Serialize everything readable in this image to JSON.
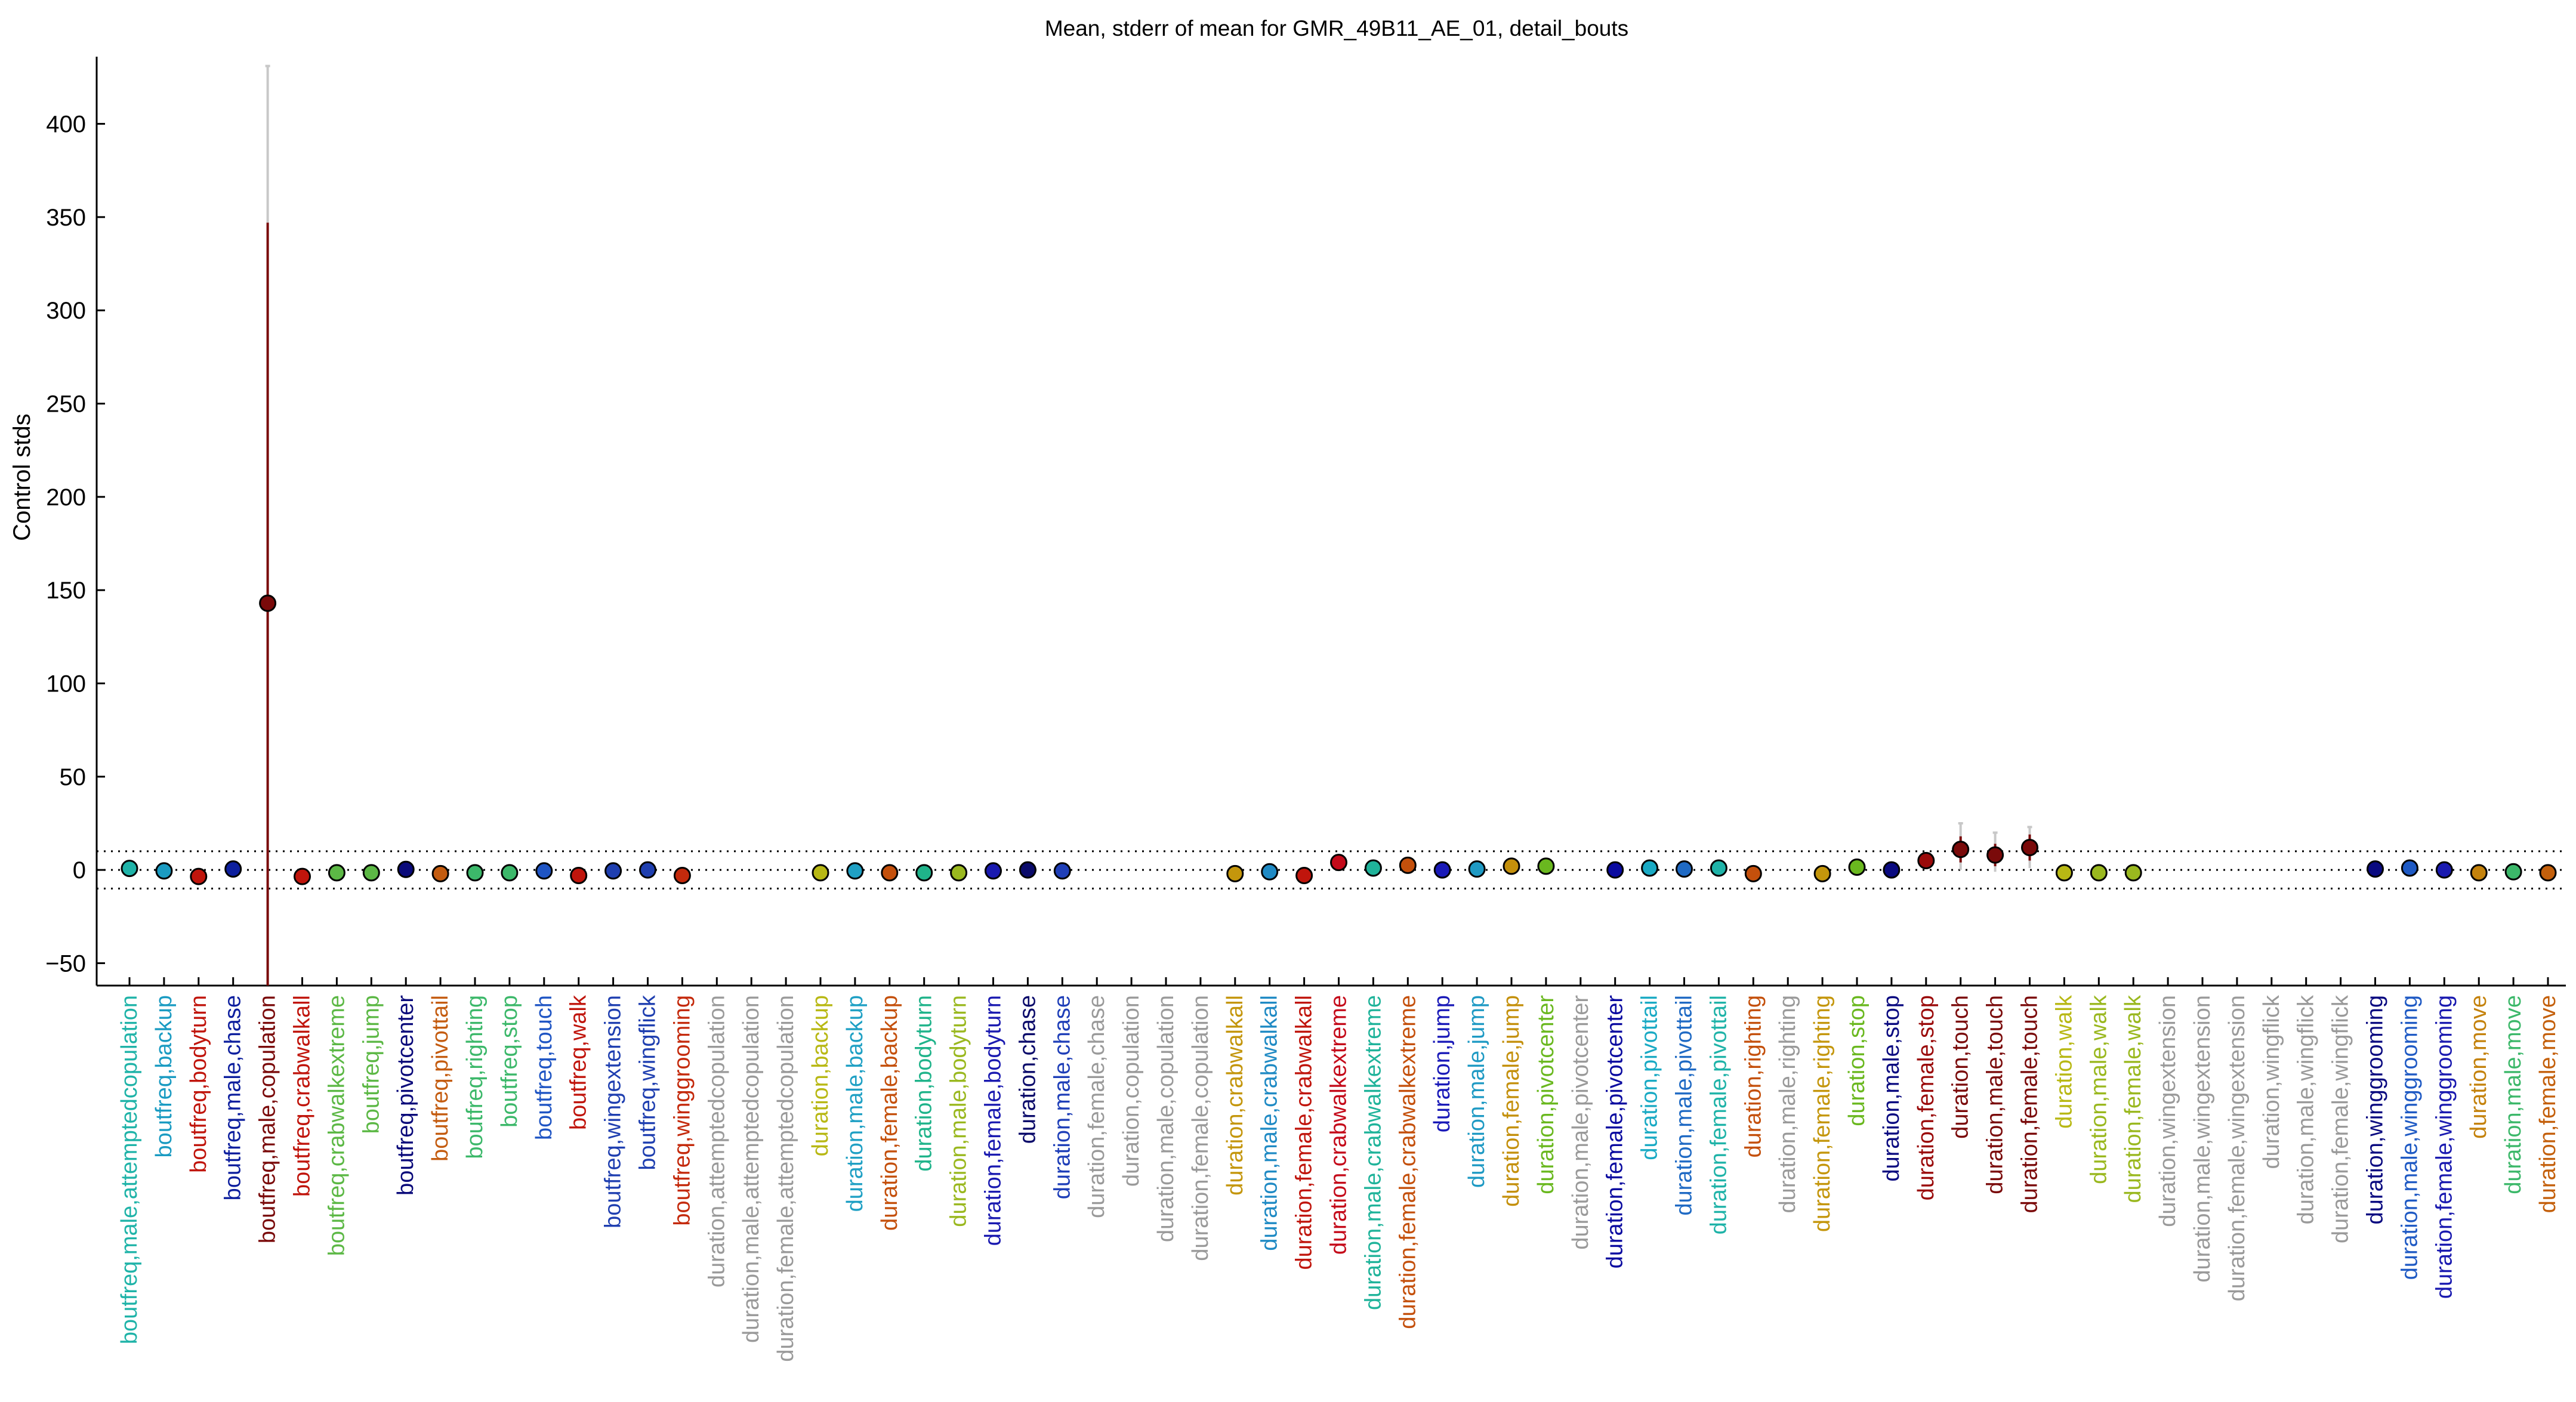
{
  "chart_data": {
    "type": "scatter",
    "title": "Mean, stderr of mean for GMR_49B11_AE_01, detail_bouts",
    "ylabel": "Control stds",
    "xlabel": "",
    "ylim": [
      -62,
      436
    ],
    "yticks": [
      -50,
      0,
      50,
      100,
      150,
      200,
      250,
      300,
      350,
      400
    ],
    "reference_lines": [
      10,
      0,
      -10
    ],
    "grid": false,
    "points": [
      {
        "label": "boutfreq,male,attemptedcopulation",
        "mean": 0.8,
        "se_low": 0.8,
        "se_high": 0.8,
        "color": "#1fb3a8"
      },
      {
        "label": "boutfreq,backup",
        "mean": -0.5,
        "se_low": -0.5,
        "se_high": -0.5,
        "color": "#1a9bc2"
      },
      {
        "label": "boutfreq,bodyturn",
        "mean": -3.5,
        "se_low": -3.5,
        "se_high": -3.5,
        "color": "#c0150c"
      },
      {
        "label": "boutfreq,male,chase",
        "mean": 0.5,
        "se_low": 0.5,
        "se_high": 0.5,
        "color": "#0d1f9e"
      },
      {
        "label": "boutfreq,male,copulation",
        "mean": 143,
        "se_low": -62,
        "se_high": 347,
        "color": "#7a0a0a",
        "ci_low": -62,
        "ci_high": 431
      },
      {
        "label": "boutfreq,crabwalkall",
        "mean": -3.5,
        "se_low": -3.5,
        "se_high": -3.5,
        "color": "#c0150c"
      },
      {
        "label": "boutfreq,crabwalkextreme",
        "mean": -1.5,
        "se_low": -1.5,
        "se_high": -1.5,
        "color": "#5cb845"
      },
      {
        "label": "boutfreq,jump",
        "mean": -1.5,
        "se_low": -1.5,
        "se_high": -1.5,
        "color": "#5cb845"
      },
      {
        "label": "boutfreq,pivotcenter",
        "mean": 0.3,
        "se_low": 0.3,
        "se_high": 0.3,
        "color": "#0a0a7a"
      },
      {
        "label": "boutfreq,pivottail",
        "mean": -2,
        "se_low": -2,
        "se_high": -2,
        "color": "#c45c10"
      },
      {
        "label": "boutfreq,righting",
        "mean": -1.5,
        "se_low": -1.5,
        "se_high": -1.5,
        "color": "#3cb86a"
      },
      {
        "label": "boutfreq,stop",
        "mean": -1.5,
        "se_low": -1.5,
        "se_high": -1.5,
        "color": "#3cb86a"
      },
      {
        "label": "boutfreq,touch",
        "mean": -0.5,
        "se_low": -0.5,
        "se_high": -0.5,
        "color": "#1f55c4"
      },
      {
        "label": "boutfreq,walk",
        "mean": -3,
        "se_low": -3,
        "se_high": -3,
        "color": "#c0150c"
      },
      {
        "label": "boutfreq,wingextension",
        "mean": -0.5,
        "se_low": -0.5,
        "se_high": -0.5,
        "color": "#1f3fb0"
      },
      {
        "label": "boutfreq,wingflick",
        "mean": 0,
        "se_low": 0,
        "se_high": 0,
        "color": "#1f3fb0"
      },
      {
        "label": "boutfreq,winggrooming",
        "mean": -3,
        "se_low": -3,
        "se_high": -3,
        "color": "#c42a0c"
      },
      {
        "label": "duration,attemptedcopulation",
        "mean": null,
        "color": "#9a9a9a"
      },
      {
        "label": "duration,male,attemptedcopulation",
        "mean": null,
        "color": "#9a9a9a"
      },
      {
        "label": "duration,female,attemptedcopulation",
        "mean": null,
        "color": "#9a9a9a"
      },
      {
        "label": "duration,backup",
        "mean": -1.5,
        "se_low": -1.5,
        "se_high": -1.5,
        "color": "#b8b814"
      },
      {
        "label": "duration,male,backup",
        "mean": -0.5,
        "se_low": -0.5,
        "se_high": -0.5,
        "color": "#1fa0c4"
      },
      {
        "label": "duration,female,backup",
        "mean": -1.5,
        "se_low": -1.5,
        "se_high": -1.5,
        "color": "#c4500c"
      },
      {
        "label": "duration,bodyturn",
        "mean": -1.5,
        "se_low": -1.5,
        "se_high": -1.5,
        "color": "#1fb38a"
      },
      {
        "label": "duration,male,bodyturn",
        "mean": -1.5,
        "se_low": -1.5,
        "se_high": -1.5,
        "color": "#9ab81f"
      },
      {
        "label": "duration,female,bodyturn",
        "mean": -0.5,
        "se_low": -0.5,
        "se_high": -0.5,
        "color": "#1a1ab0"
      },
      {
        "label": "duration,chase",
        "mean": 0,
        "se_low": 0,
        "se_high": 0,
        "color": "#0a0a6a"
      },
      {
        "label": "duration,male,chase",
        "mean": -0.5,
        "se_low": -0.5,
        "se_high": -0.5,
        "color": "#1f3fb8"
      },
      {
        "label": "duration,female,chase",
        "mean": null,
        "color": "#9a9a9a"
      },
      {
        "label": "duration,copulation",
        "mean": null,
        "color": "#9a9a9a"
      },
      {
        "label": "duration,male,copulation",
        "mean": null,
        "color": "#9a9a9a"
      },
      {
        "label": "duration,female,copulation",
        "mean": null,
        "color": "#9a9a9a"
      },
      {
        "label": "duration,crabwalkall",
        "mean": -2,
        "se_low": -2,
        "se_high": -2,
        "color": "#c4960c"
      },
      {
        "label": "duration,male,crabwalkall",
        "mean": -1,
        "se_low": -1,
        "se_high": -1,
        "color": "#1f8ac4"
      },
      {
        "label": "duration,female,crabwalkall",
        "mean": -3,
        "se_low": -3,
        "se_high": -3,
        "color": "#c0150c"
      },
      {
        "label": "duration,crabwalkextreme",
        "mean": 4,
        "se_low": 4,
        "se_high": 4,
        "color": "#c40a1a"
      },
      {
        "label": "duration,male,crabwalkextreme",
        "mean": 1,
        "se_low": 1,
        "se_high": 1,
        "color": "#1fb39a"
      },
      {
        "label": "duration,female,crabwalkextreme",
        "mean": 2.5,
        "se_low": 2.5,
        "se_high": 2.5,
        "color": "#c4500c"
      },
      {
        "label": "duration,jump",
        "mean": 0,
        "se_low": 0,
        "se_high": 0,
        "color": "#1a1ab8"
      },
      {
        "label": "duration,male,jump",
        "mean": 0.5,
        "se_low": 0.5,
        "se_high": 0.5,
        "color": "#1f9ac4"
      },
      {
        "label": "duration,female,jump",
        "mean": 2,
        "se_low": 2,
        "se_high": 2,
        "color": "#c4900c"
      },
      {
        "label": "duration,pivotcenter",
        "mean": 2,
        "se_low": 2,
        "se_high": 2,
        "color": "#6ab81f"
      },
      {
        "label": "duration,male,pivotcenter",
        "mean": null,
        "color": "#9a9a9a"
      },
      {
        "label": "duration,female,pivotcenter",
        "mean": 0,
        "se_low": 0,
        "se_high": 0,
        "color": "#0a0aa0"
      },
      {
        "label": "duration,pivottail",
        "mean": 1,
        "se_low": 1,
        "se_high": 1,
        "color": "#1aaac4"
      },
      {
        "label": "duration,male,pivottail",
        "mean": 0.5,
        "se_low": 0.5,
        "se_high": 0.5,
        "color": "#1f6ac4"
      },
      {
        "label": "duration,female,pivottail",
        "mean": 1,
        "se_low": 1,
        "se_high": 1,
        "color": "#1fb3a8"
      },
      {
        "label": "duration,righting",
        "mean": -2,
        "se_low": -2,
        "se_high": -2,
        "color": "#c4500c"
      },
      {
        "label": "duration,male,righting",
        "mean": null,
        "color": "#9a9a9a"
      },
      {
        "label": "duration,female,righting",
        "mean": -2,
        "se_low": -2,
        "se_high": -2,
        "color": "#c4960c"
      },
      {
        "label": "duration,stop",
        "mean": 1.5,
        "se_low": 1.5,
        "se_high": 1.5,
        "color": "#6ab81f"
      },
      {
        "label": "duration,male,stop",
        "mean": 0,
        "se_low": 0,
        "se_high": 0,
        "color": "#0a0a80"
      },
      {
        "label": "duration,female,stop",
        "mean": 5,
        "se_low": 4,
        "se_high": 6,
        "color": "#9a0a0a"
      },
      {
        "label": "duration,touch",
        "mean": 11,
        "se_low": 4,
        "se_high": 18,
        "color": "#7a0a0a",
        "ci_low": 0,
        "ci_high": 25
      },
      {
        "label": "duration,male,touch",
        "mean": 8,
        "se_low": 2,
        "se_high": 14,
        "color": "#7a0a0a",
        "ci_low": -1,
        "ci_high": 20
      },
      {
        "label": "duration,female,touch",
        "mean": 12,
        "se_low": 5,
        "se_high": 19,
        "color": "#7a0a0a",
        "ci_low": 1,
        "ci_high": 23
      },
      {
        "label": "duration,walk",
        "mean": -1.5,
        "se_low": -1.5,
        "se_high": -1.5,
        "color": "#b8b814"
      },
      {
        "label": "duration,male,walk",
        "mean": -1.5,
        "se_low": -1.5,
        "se_high": -1.5,
        "color": "#9ab81f"
      },
      {
        "label": "duration,female,walk",
        "mean": -1.5,
        "se_low": -1.5,
        "se_high": -1.5,
        "color": "#9ab81f"
      },
      {
        "label": "duration,wingextension",
        "mean": null,
        "color": "#9a9a9a"
      },
      {
        "label": "duration,male,wingextension",
        "mean": null,
        "color": "#9a9a9a"
      },
      {
        "label": "duration,female,wingextension",
        "mean": null,
        "color": "#9a9a9a"
      },
      {
        "label": "duration,wingflick",
        "mean": null,
        "color": "#9a9a9a"
      },
      {
        "label": "duration,male,wingflick",
        "mean": null,
        "color": "#9a9a9a"
      },
      {
        "label": "duration,female,wingflick",
        "mean": null,
        "color": "#9a9a9a"
      },
      {
        "label": "duration,winggrooming",
        "mean": 0.5,
        "se_low": 0.5,
        "se_high": 0.5,
        "color": "#0a0a80"
      },
      {
        "label": "duration,male,winggrooming",
        "mean": 1,
        "se_low": 1,
        "se_high": 1,
        "color": "#1f5ac4"
      },
      {
        "label": "duration,female,winggrooming",
        "mean": 0,
        "se_low": 0,
        "se_high": 0,
        "color": "#1a1ab0"
      },
      {
        "label": "duration,move",
        "mean": -1.5,
        "se_low": -1.5,
        "se_high": -1.5,
        "color": "#c4820c"
      },
      {
        "label": "duration,male,move",
        "mean": -1,
        "se_low": -1,
        "se_high": -1,
        "color": "#3cb86a"
      },
      {
        "label": "duration,female,move",
        "mean": -1.5,
        "se_low": -1.5,
        "se_high": -1.5,
        "color": "#c4600c"
      }
    ]
  }
}
